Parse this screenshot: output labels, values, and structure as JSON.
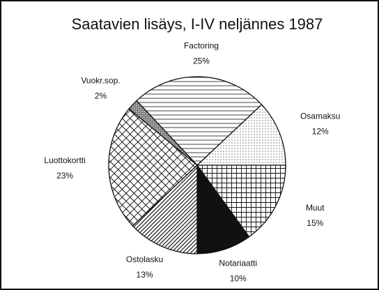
{
  "chart_data": {
    "type": "pie",
    "title": "Saatavien lisäys, I-IV neljännes 1987",
    "categories": [
      "Factoring",
      "Osamaksu",
      "Muut",
      "Notariaatti",
      "Ostolasku",
      "Luottokortti",
      "Vuokr.sop."
    ],
    "values": [
      25,
      12,
      15,
      10,
      13,
      23,
      2
    ],
    "value_labels": [
      "25%",
      "12%",
      "15%",
      "10%",
      "13%",
      "23%",
      "2%"
    ]
  }
}
